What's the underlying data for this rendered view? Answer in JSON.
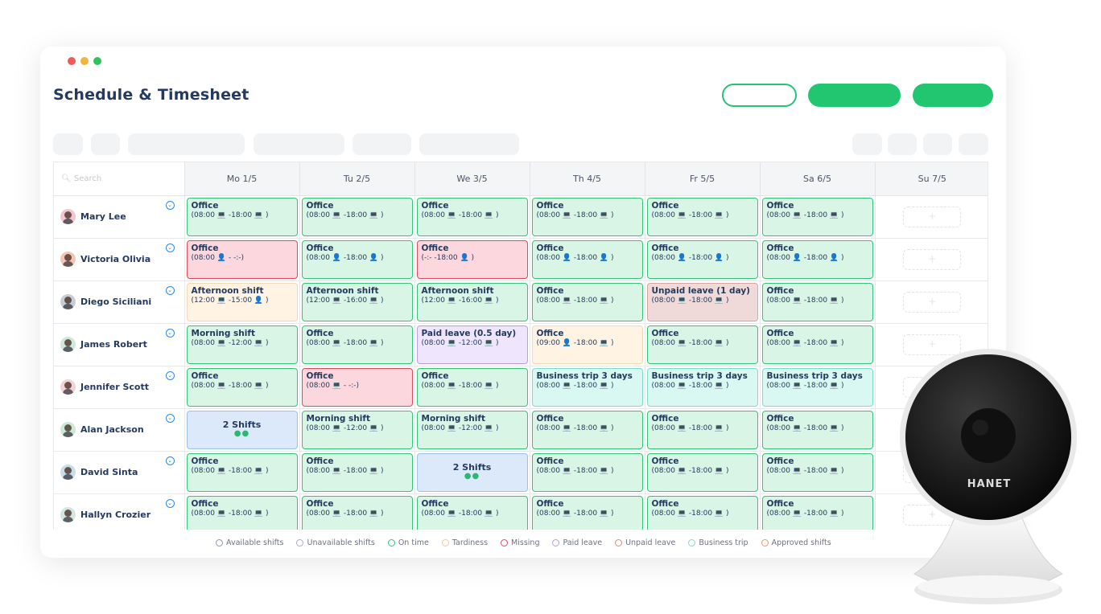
{
  "window": {
    "traffic_colors": [
      "#ef5b55",
      "#f2b53a",
      "#2fc45a"
    ]
  },
  "header": {
    "title": "Schedule & Timesheet",
    "accent": "#22c671"
  },
  "search": {
    "placeholder": "Search"
  },
  "days": [
    "Mo 1/5",
    "Tu 2/5",
    "We 3/5",
    "Th 4/5",
    "Fr 5/5",
    "Sa 6/5",
    "Su 7/5"
  ],
  "rows": [
    {
      "name": "Mary Lee",
      "avatar_color": "#f4c5cf",
      "cells": [
        {
          "kind": "green",
          "title": "Office",
          "time": "(08:00 💻 -18:00 💻 )"
        },
        {
          "kind": "green",
          "title": "Office",
          "time": "(08:00 💻 -18:00 💻 )"
        },
        {
          "kind": "green",
          "title": "Office",
          "time": "(08:00 💻 -18:00 💻 )"
        },
        {
          "kind": "green",
          "title": "Office",
          "time": "(08:00 💻 -18:00 💻 )"
        },
        {
          "kind": "green",
          "title": "Office",
          "time": "(08:00 💻 -18:00 💻 )"
        },
        {
          "kind": "green",
          "title": "Office",
          "time": "(08:00 💻 -18:00 💻 )"
        },
        {
          "kind": "empty",
          "title": "+"
        }
      ]
    },
    {
      "name": "Victoria Olivia",
      "avatar_color": "#f6c4b4",
      "cells": [
        {
          "kind": "red",
          "title": "Office",
          "time": "(08:00 👤 - -:-)"
        },
        {
          "kind": "green",
          "title": "Office",
          "time": "(08:00 👤 -18:00 👤 )"
        },
        {
          "kind": "red",
          "title": "Office",
          "time": "(-:- -18:00 👤 )"
        },
        {
          "kind": "green",
          "title": "Office",
          "time": "(08:00 👤 -18:00 👤 )"
        },
        {
          "kind": "green",
          "title": "Office",
          "time": "(08:00 👤 -18:00 👤 )"
        },
        {
          "kind": "green",
          "title": "Office",
          "time": "(08:00 👤 -18:00 👤 )"
        },
        {
          "kind": "empty",
          "title": "+"
        }
      ]
    },
    {
      "name": "Diego Siciliani",
      "avatar_color": "#c9ccd2",
      "cells": [
        {
          "kind": "orange",
          "title": "Afternoon shift",
          "time": "(12:00 💻 -15:00 👤 )"
        },
        {
          "kind": "green",
          "title": "Afternoon shift",
          "time": "(12:00 💻 -16:00 💻 )"
        },
        {
          "kind": "green",
          "title": "Afternoon shift",
          "time": "(12:00 💻 -16:00 💻 )"
        },
        {
          "kind": "green",
          "title": "Office",
          "time": "(08:00 💻 -18:00 💻 )"
        },
        {
          "kind": "brown",
          "title": "Unpaid leave (1 day)",
          "time": "(08:00 💻 -18:00 💻 )"
        },
        {
          "kind": "green",
          "title": "Office",
          "time": "(08:00 💻 -18:00 💻 )"
        },
        {
          "kind": "empty",
          "title": "+"
        }
      ]
    },
    {
      "name": "James Robert",
      "avatar_color": "#cfe8d9",
      "cells": [
        {
          "kind": "green",
          "title": "Morning shift",
          "time": "(08:00 💻 -12:00 💻 )"
        },
        {
          "kind": "green",
          "title": "Office",
          "time": "(08:00 💻 -18:00 💻 )"
        },
        {
          "kind": "purple",
          "title": "Paid leave (0.5 day)",
          "time": "(08:00 💻 -12:00 💻 )"
        },
        {
          "kind": "orange",
          "title": "Office",
          "time": "(09:00 👤 -18:00 💻 )"
        },
        {
          "kind": "green",
          "title": "Office",
          "time": "(08:00 💻 -18:00 💻 )"
        },
        {
          "kind": "green",
          "title": "Office",
          "time": "(08:00 💻 -18:00 💻 )"
        },
        {
          "kind": "empty",
          "title": "+"
        }
      ]
    },
    {
      "name": "Jennifer Scott",
      "avatar_color": "#f1d2d6",
      "cells": [
        {
          "kind": "green",
          "title": "Office",
          "time": "(08:00 💻 -18:00 💻 )"
        },
        {
          "kind": "red",
          "title": "Office",
          "time": "(08:00 💻 - -:-)"
        },
        {
          "kind": "green",
          "title": "Office",
          "time": "(08:00 💻 -18:00 💻 )"
        },
        {
          "kind": "cyan",
          "title": "Business trip 3 days",
          "time": "(08:00 💻 -18:00 💻 )"
        },
        {
          "kind": "cyan",
          "title": "Business trip 3 days",
          "time": "(08:00 💻 -18:00 💻 )"
        },
        {
          "kind": "cyan",
          "title": "Business trip 3 days",
          "time": "(08:00 💻 -18:00 💻 )"
        },
        {
          "kind": "empty",
          "title": "+"
        }
      ]
    },
    {
      "name": "Alan Jackson",
      "avatar_color": "#cde8d6",
      "cells": [
        {
          "kind": "blue",
          "title": "2 Shifts",
          "dots": "●●"
        },
        {
          "kind": "green",
          "title": "Morning shift",
          "time": "(08:00 💻 -12:00 💻 )"
        },
        {
          "kind": "green",
          "title": "Morning shift",
          "time": "(08:00 💻 -12:00 💻 )"
        },
        {
          "kind": "green",
          "title": "Office",
          "time": "(08:00 💻 -18:00 💻 )"
        },
        {
          "kind": "green",
          "title": "Office",
          "time": "(08:00 💻 -18:00 💻 )"
        },
        {
          "kind": "green",
          "title": "Office",
          "time": "(08:00 💻 -18:00 💻 )"
        },
        {
          "kind": "empty",
          "title": "+"
        }
      ]
    },
    {
      "name": "David Sinta",
      "avatar_color": "#c9dde9",
      "cells": [
        {
          "kind": "green",
          "title": "Office",
          "time": "(08:00 💻 -18:00 💻 )"
        },
        {
          "kind": "green",
          "title": "Office",
          "time": "(08:00 💻 -18:00 💻 )"
        },
        {
          "kind": "blue",
          "title": "2 Shifts",
          "dots": "●●"
        },
        {
          "kind": "green",
          "title": "Office",
          "time": "(08:00 💻 -18:00 💻 )"
        },
        {
          "kind": "green",
          "title": "Office",
          "time": "(08:00 💻 -18:00 💻 )"
        },
        {
          "kind": "green",
          "title": "Office",
          "time": "(08:00 💻 -18:00 💻 )"
        },
        {
          "kind": "empty",
          "title": "+"
        }
      ]
    },
    {
      "name": "Hallyn Crozier",
      "avatar_color": "#d4e7df",
      "cells": [
        {
          "kind": "green",
          "title": "Office",
          "time": "(08:00 💻 -18:00 💻 )"
        },
        {
          "kind": "green",
          "title": "Office",
          "time": "(08:00 💻 -18:00 💻 )"
        },
        {
          "kind": "green",
          "title": "Office",
          "time": "(08:00 💻 -18:00 💻 )"
        },
        {
          "kind": "green",
          "title": "Office",
          "time": "(08:00 💻 -18:00 💻 )"
        },
        {
          "kind": "green",
          "title": "Office",
          "time": "(08:00 💻 -18:00 💻 )"
        },
        {
          "kind": "green",
          "title": "Office",
          "time": "(08:00 💻 -18:00 💻 )"
        },
        {
          "kind": "empty",
          "title": "+"
        }
      ]
    }
  ],
  "legend": [
    {
      "label": "Available shifts",
      "color": "#8e93a8"
    },
    {
      "label": "Unavailable shifts",
      "color": "#a9a4d6"
    },
    {
      "label": "On time",
      "color": "#36c47a"
    },
    {
      "label": "Tardiness",
      "color": "#f1c98a"
    },
    {
      "label": "Missing",
      "color": "#e0495f"
    },
    {
      "label": "Paid leave",
      "color": "#b79de6"
    },
    {
      "label": "Unpaid leave",
      "color": "#e08a80"
    },
    {
      "label": "Business trip",
      "color": "#7edcc9"
    },
    {
      "label": "Approved shifts",
      "color": "#e89a6c"
    }
  ],
  "camera": {
    "brand": "HANET"
  }
}
